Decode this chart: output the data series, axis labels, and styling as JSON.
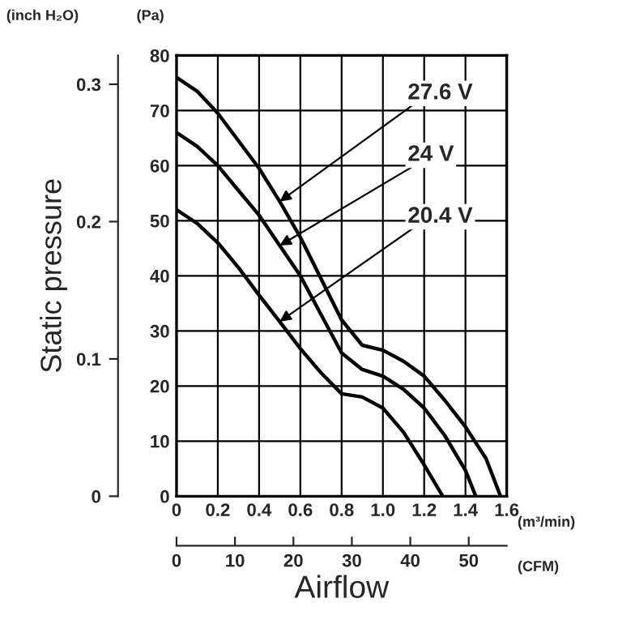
{
  "chart_data": {
    "type": "line",
    "y2label": "Static pressure",
    "xlabel": "Airflow",
    "xlim": [
      0,
      1.6
    ],
    "xticks": [
      0,
      0.2,
      0.4,
      0.6,
      0.8,
      {
        "value": 1,
        "label": "1.0"
      },
      1.2,
      1.4,
      1.6
    ],
    "ylim": [
      0,
      80
    ],
    "yticks": [
      0,
      10,
      20,
      30,
      40,
      50,
      60,
      70,
      80
    ],
    "y2lim": [
      0,
      0.321
    ],
    "y2ticks": [
      0,
      0.1,
      0.2,
      0.3
    ],
    "x2lim": [
      0,
      56.5
    ],
    "x2ticks": [
      0,
      10,
      20,
      30,
      40,
      50
    ],
    "grid": true,
    "legend": false,
    "marker": "none",
    "line_style": "solid",
    "series": [
      {
        "color": "#000000",
        "x": [
          0,
          0.1,
          0.2,
          0.3,
          0.4,
          0.5,
          0.6,
          0.7,
          0.8,
          0.9,
          1.0,
          1.1,
          1.2,
          1.3,
          1.4,
          1.5,
          1.57
        ],
        "values": [
          76,
          73.5,
          69.5,
          64.5,
          59.5,
          53.5,
          47,
          39.5,
          32,
          27.4,
          26.5,
          24.5,
          21.8,
          17.4,
          12.6,
          6.8,
          0
        ]
      },
      {
        "color": "#000000",
        "x": [
          0,
          0.1,
          0.2,
          0.3,
          0.4,
          0.5,
          0.6,
          0.7,
          0.8,
          0.9,
          1.0,
          1.1,
          1.2,
          1.3,
          1.4,
          1.45
        ],
        "values": [
          66,
          63.5,
          60,
          55.5,
          51,
          45.5,
          40,
          33,
          26,
          23,
          21.8,
          19.4,
          16,
          11,
          4.7,
          0
        ]
      },
      {
        "color": "#000000",
        "x": [
          0,
          0.1,
          0.2,
          0.3,
          0.4,
          0.5,
          0.6,
          0.7,
          0.8,
          0.9,
          1.0,
          1.1,
          1.2,
          1.29
        ],
        "values": [
          52,
          49.5,
          46,
          41.5,
          36.5,
          31.7,
          26.8,
          22.4,
          18.6,
          18,
          16,
          11.6,
          5.7,
          0
        ]
      }
    ],
    "annotations": [
      "27.6 V",
      "24 V",
      "20.4 V",
      "(inch H₂O)",
      "(Pa)",
      "(m³/min)",
      "(CFM)"
    ]
  }
}
